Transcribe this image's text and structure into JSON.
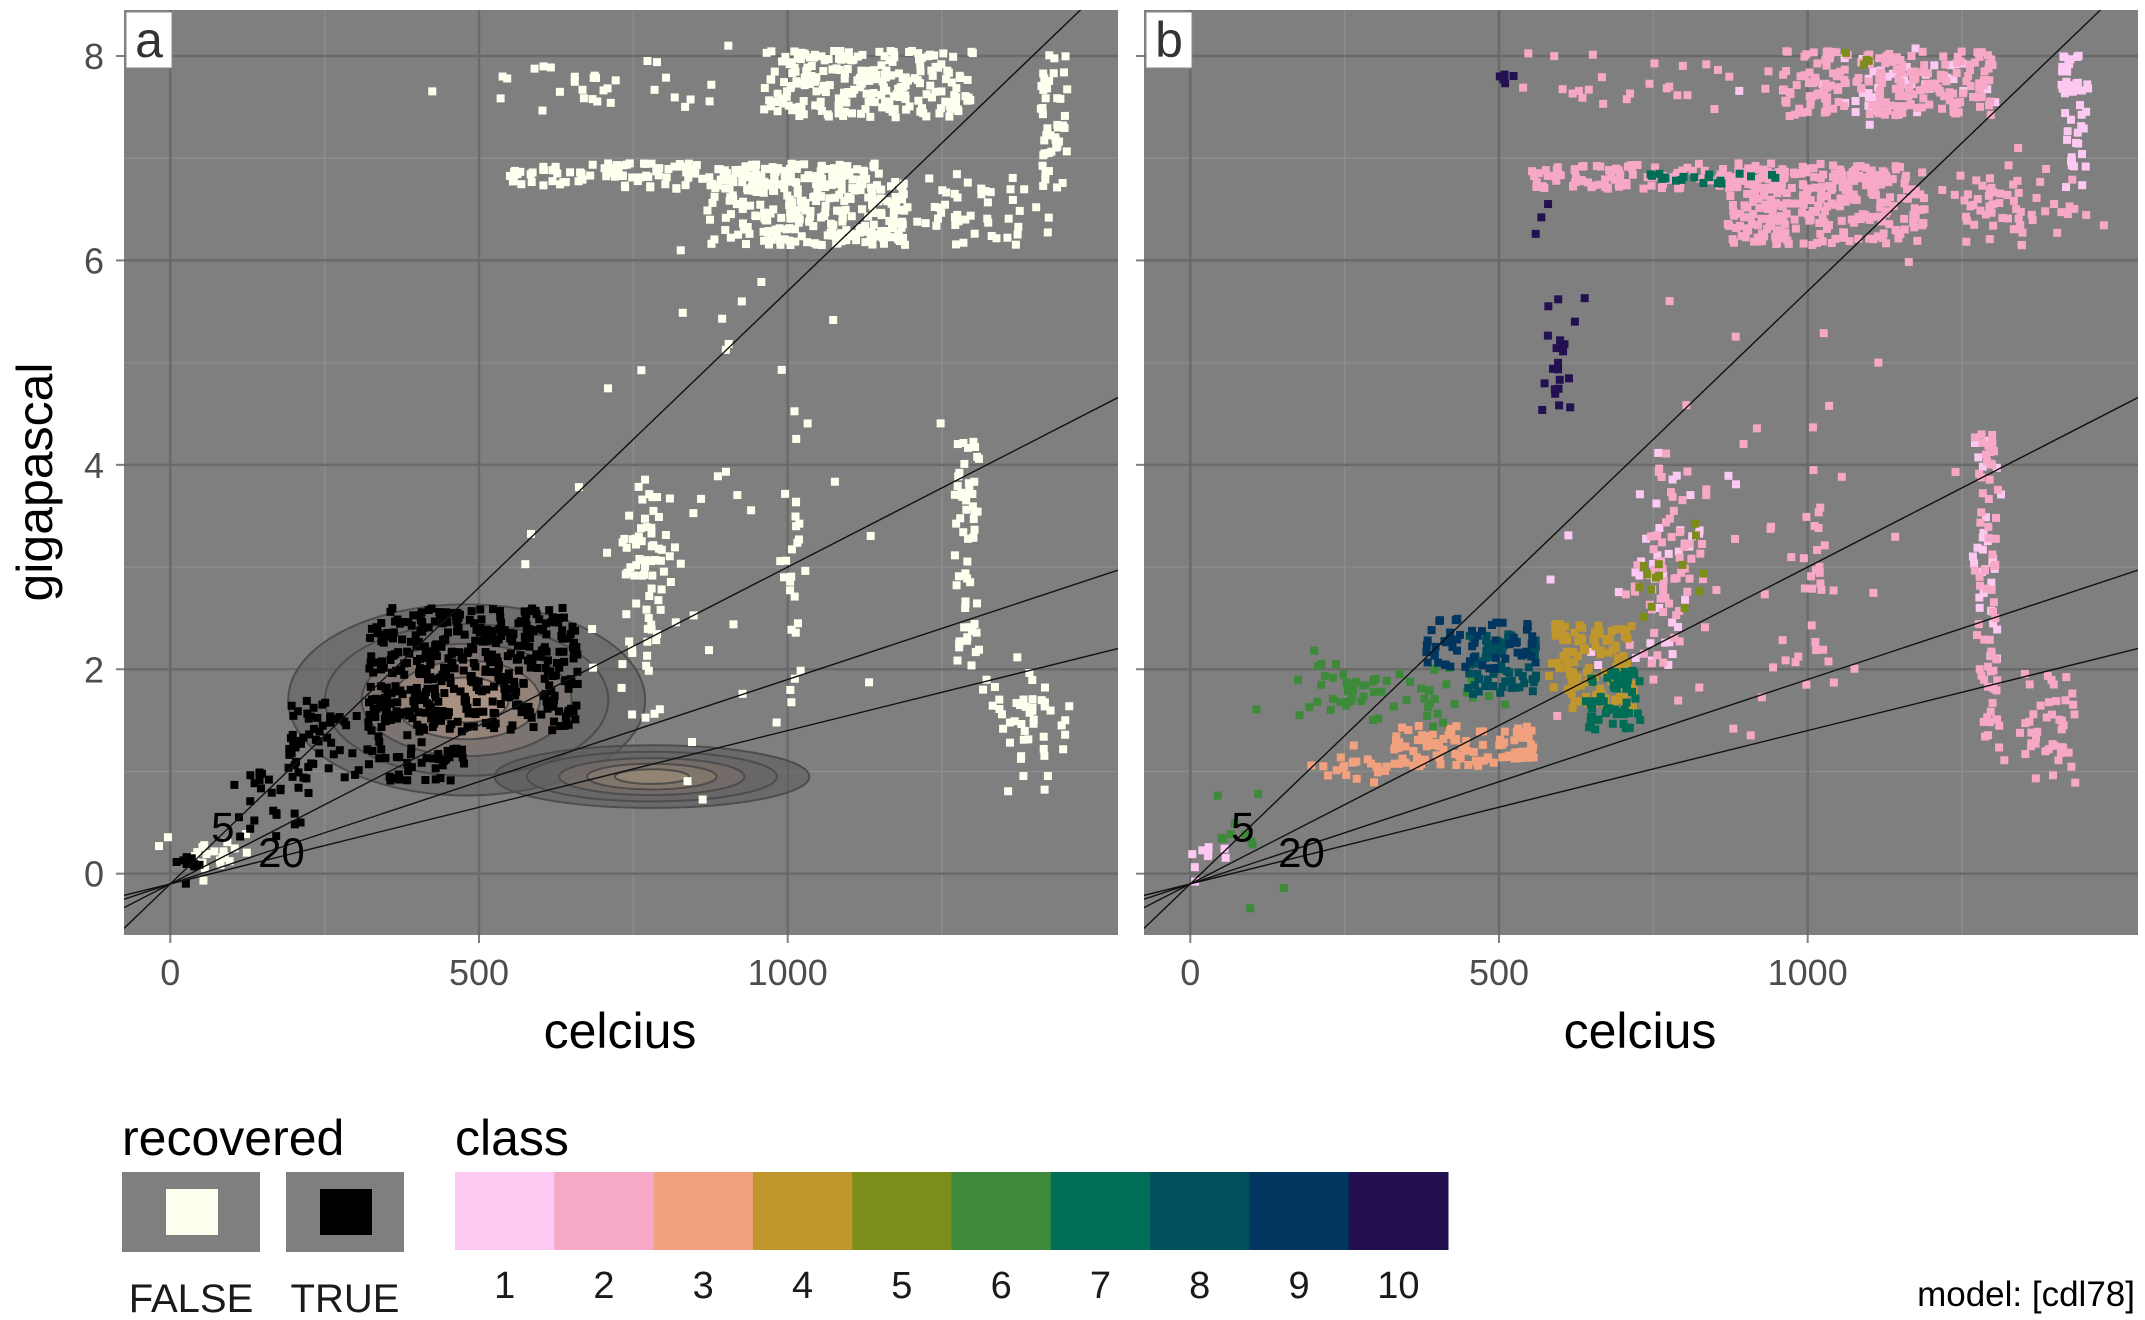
{
  "chart_data": {
    "type": "scatter",
    "x": {
      "label": "celcius",
      "ticks": [
        0,
        500,
        1000
      ],
      "tick_labels": [
        "0",
        "500",
        "1000"
      ],
      "range": [
        -75,
        1535
      ]
    },
    "y": {
      "label": "gigapascal",
      "ticks": [
        0,
        2,
        4,
        6,
        8
      ],
      "tick_labels": [
        "0",
        "2",
        "4",
        "6",
        "8"
      ],
      "range": [
        -0.6,
        8.45
      ]
    },
    "grid": true,
    "background": "#7f7f7f",
    "reference_lines": {
      "intercept": -0.1,
      "slopes": [
        0.0058,
        0.0031,
        0.002,
        0.0015
      ],
      "labels": [
        {
          "text": "5",
          "x": 85,
          "y": 0.45
        },
        {
          "text": "20",
          "x": 180,
          "y": 0.2
        }
      ]
    },
    "panels": [
      {
        "tag": "a",
        "colour_by": "recovered",
        "groups": [
          {
            "name": "FALSE",
            "color": "#fffff0",
            "regions": [
              {
                "x": [
                  870,
                  1190
                ],
                "y": [
                  6.15,
                  6.9
                ],
                "density": 1
              },
              {
                "x": [
                  550,
                  1150
                ],
                "y": [
                  6.7,
                  6.95
                ],
                "density": 1
              },
              {
                "x": [
                  1190,
                  1430
                ],
                "y": [
                  6.15,
                  6.95
                ],
                "density": 0.25
              },
              {
                "x": [
                  960,
                  1300
                ],
                "y": [
                  7.4,
                  8.05
                ],
                "density": 1
              },
              {
                "x": [
                  500,
                  960
                ],
                "y": [
                  7.45,
                  8.0
                ],
                "density": 0.12
              },
              {
                "x": [
                  1270,
                  1310
                ],
                "y": [
                  2.0,
                  4.3
                ],
                "density": 0.6
              },
              {
                "x": [
                  1310,
                  1460
                ],
                "y": [
                  0.9,
                  2.1
                ],
                "density": 0.25
              },
              {
                "x": [
                  1410,
                  1455
                ],
                "y": [
                  6.7,
                  8.05
                ],
                "density": 0.7
              },
              {
                "x": [
                  720,
                  830
                ],
                "y": [
                  1.9,
                  4.0
                ],
                "density": 0.3
              },
              {
                "x": [
                  990,
                  1030
                ],
                "y": [
                  1.8,
                  4.4
                ],
                "density": 0.2
              },
              {
                "x": [
                  0,
                  150
                ],
                "y": [
                  -0.05,
                  0.4
                ],
                "density": 0.3
              },
              {
                "x": [
                  560,
                  1240
                ],
                "y": [
                  0.5,
                  6.0
                ],
                "density": 0.012
              }
            ]
          },
          {
            "name": "TRUE",
            "color": "#000000",
            "regions": [
              {
                "x": [
                  320,
                  660
                ],
                "y": [
                  1.4,
                  2.6
                ],
                "density": 1
              },
              {
                "x": [
                  180,
                  480
                ],
                "y": [
                  0.9,
                  1.7
                ],
                "density": 0.5
              },
              {
                "x": [
                  100,
                  250
                ],
                "y": [
                  0.4,
                  1.1
                ],
                "density": 0.25
              },
              {
                "x": [
                  0,
                  60
                ],
                "y": [
                  -0.2,
                  0.3
                ],
                "density": 0.3
              }
            ]
          }
        ],
        "density_contours": [
          {
            "group": "TRUE",
            "center": [
              480,
              1.7
            ],
            "spread": [
              170,
              0.55
            ]
          },
          {
            "group": "FALSE",
            "center": [
              780,
              0.95
            ],
            "spread": [
              150,
              0.18
            ]
          }
        ]
      },
      {
        "tag": "b",
        "colour_by": "class",
        "groups": [
          {
            "name": "1",
            "color": "#fdc9f2",
            "regions": [
              {
                "x": [
                  1410,
                  1455
                ],
                "y": [
                  6.7,
                  8.05
                ],
                "density": 0.7
              },
              {
                "x": [
                  1270,
                  1310
                ],
                "y": [
                  2.0,
                  4.3
                ],
                "density": 0.3
              },
              {
                "x": [
                  960,
                  1300
                ],
                "y": [
                  7.4,
                  8.05
                ],
                "density": 0.2
              },
              {
                "x": [
                  0,
                  80
                ],
                "y": [
                  -0.05,
                  0.3
                ],
                "density": 0.3
              },
              {
                "x": [
                  720,
                  830
                ],
                "y": [
                  1.9,
                  4.0
                ],
                "density": 0.1
              },
              {
                "x": [
                  570,
                  900
                ],
                "y": [
                  1.6,
                  4.2
                ],
                "density": 0.02
              }
            ]
          },
          {
            "name": "2",
            "color": "#f7a8c6",
            "regions": [
              {
                "x": [
                  870,
                  1190
                ],
                "y": [
                  6.15,
                  6.9
                ],
                "density": 1
              },
              {
                "x": [
                  550,
                  1150
                ],
                "y": [
                  6.7,
                  6.95
                ],
                "density": 1
              },
              {
                "x": [
                  1190,
                  1430
                ],
                "y": [
                  6.15,
                  6.95
                ],
                "density": 0.3
              },
              {
                "x": [
                  960,
                  1300
                ],
                "y": [
                  7.4,
                  8.05
                ],
                "density": 0.9
              },
              {
                "x": [
                  500,
                  960
                ],
                "y": [
                  7.45,
                  8.0
                ],
                "density": 0.1
              },
              {
                "x": [
                  1270,
                  1310
                ],
                "y": [
                  1.3,
                  4.3
                ],
                "density": 0.5
              },
              {
                "x": [
                  1310,
                  1460
                ],
                "y": [
                  0.9,
                  2.1
                ],
                "density": 0.25
              },
              {
                "x": [
                  720,
                  830
                ],
                "y": [
                  1.9,
                  4.0
                ],
                "density": 0.25
              },
              {
                "x": [
                  990,
                  1030
                ],
                "y": [
                  1.8,
                  4.4
                ],
                "density": 0.2
              },
              {
                "x": [
                  560,
                  1240
                ],
                "y": [
                  0.5,
                  6.0
                ],
                "density": 0.01
              }
            ]
          },
          {
            "name": "3",
            "color": "#f2a17e",
            "regions": [
              {
                "x": [
                  330,
                  560
                ],
                "y": [
                  1.05,
                  1.45
                ],
                "density": 1
              },
              {
                "x": [
                  180,
                  330
                ],
                "y": [
                  0.9,
                  1.2
                ],
                "density": 0.45
              }
            ]
          },
          {
            "name": "4",
            "color": "#c0972d",
            "regions": [
              {
                "x": [
                  580,
                  720
                ],
                "y": [
                  1.6,
                  2.45
                ],
                "density": 1
              }
            ]
          },
          {
            "name": "5",
            "color": "#7c8d1a",
            "regions": [
              {
                "x": [
                  700,
                  790
                ],
                "y": [
                  2.4,
                  3.2
                ],
                "density": 0.12
              },
              {
                "x": [
                  780,
                  850
                ],
                "y": [
                  2.4,
                  4.5
                ],
                "density": 0.04
              },
              {
                "x": [
                  1060,
                  1110
                ],
                "y": [
                  7.9,
                  8.05
                ],
                "density": 0.5
              }
            ]
          },
          {
            "name": "6",
            "color": "#3d8a3a",
            "regions": [
              {
                "x": [
                  160,
                  460
                ],
                "y": [
                  1.4,
                  2.1
                ],
                "density": 0.3
              },
              {
                "x": [
                  0,
                  200
                ],
                "y": [
                  -0.2,
                  0.6
                ],
                "density": 0.05
              },
              {
                "x": [
                  20,
                  120
                ],
                "y": [
                  0.3,
                  0.9
                ],
                "density": 0.05
              }
            ]
          },
          {
            "name": "7",
            "color": "#006d56",
            "regions": [
              {
                "x": [
                  640,
                  730
                ],
                "y": [
                  1.4,
                  2.0
                ],
                "density": 1
              },
              {
                "x": [
                  740,
                  950
                ],
                "y": [
                  6.75,
                  6.85
                ],
                "density": 0.9
              }
            ]
          },
          {
            "name": "8",
            "color": "#004f5c",
            "regions": [
              {
                "x": [
                  450,
                  560
                ],
                "y": [
                  1.75,
                  2.35
                ],
                "density": 1
              }
            ]
          },
          {
            "name": "9",
            "color": "#003660",
            "regions": [
              {
                "x": [
                  380,
                  560
                ],
                "y": [
                  2.0,
                  2.5
                ],
                "density": 0.6
              }
            ]
          },
          {
            "name": "10",
            "color": "#221050",
            "regions": [
              {
                "x": [
                  500,
                  530
                ],
                "y": [
                  7.7,
                  8.0
                ],
                "density": 0.5
              },
              {
                "x": [
                  570,
                  640
                ],
                "y": [
                  4.4,
                  5.8
                ],
                "density": 0.2
              },
              {
                "x": [
                  560,
                  580
                ],
                "y": [
                  6.2,
                  6.5
                ],
                "density": 0.3
              }
            ]
          }
        ]
      }
    ],
    "legends": {
      "recovered": {
        "title": "recovered",
        "items": [
          {
            "label": "FALSE",
            "color": "#fffff0"
          },
          {
            "label": "TRUE",
            "color": "#000000"
          }
        ]
      },
      "class": {
        "title": "class",
        "items": [
          {
            "label": "1",
            "color": "#fdc9f2"
          },
          {
            "label": "2",
            "color": "#f7a8c6"
          },
          {
            "label": "3",
            "color": "#f2a17e"
          },
          {
            "label": "4",
            "color": "#c0972d"
          },
          {
            "label": "5",
            "color": "#7c8d1a"
          },
          {
            "label": "6",
            "color": "#3d8a3a"
          },
          {
            "label": "7",
            "color": "#006d56"
          },
          {
            "label": "8",
            "color": "#004f5c"
          },
          {
            "label": "9",
            "color": "#003660"
          },
          {
            "label": "10",
            "color": "#221050"
          }
        ]
      }
    },
    "caption": "model: [cdl78]"
  }
}
